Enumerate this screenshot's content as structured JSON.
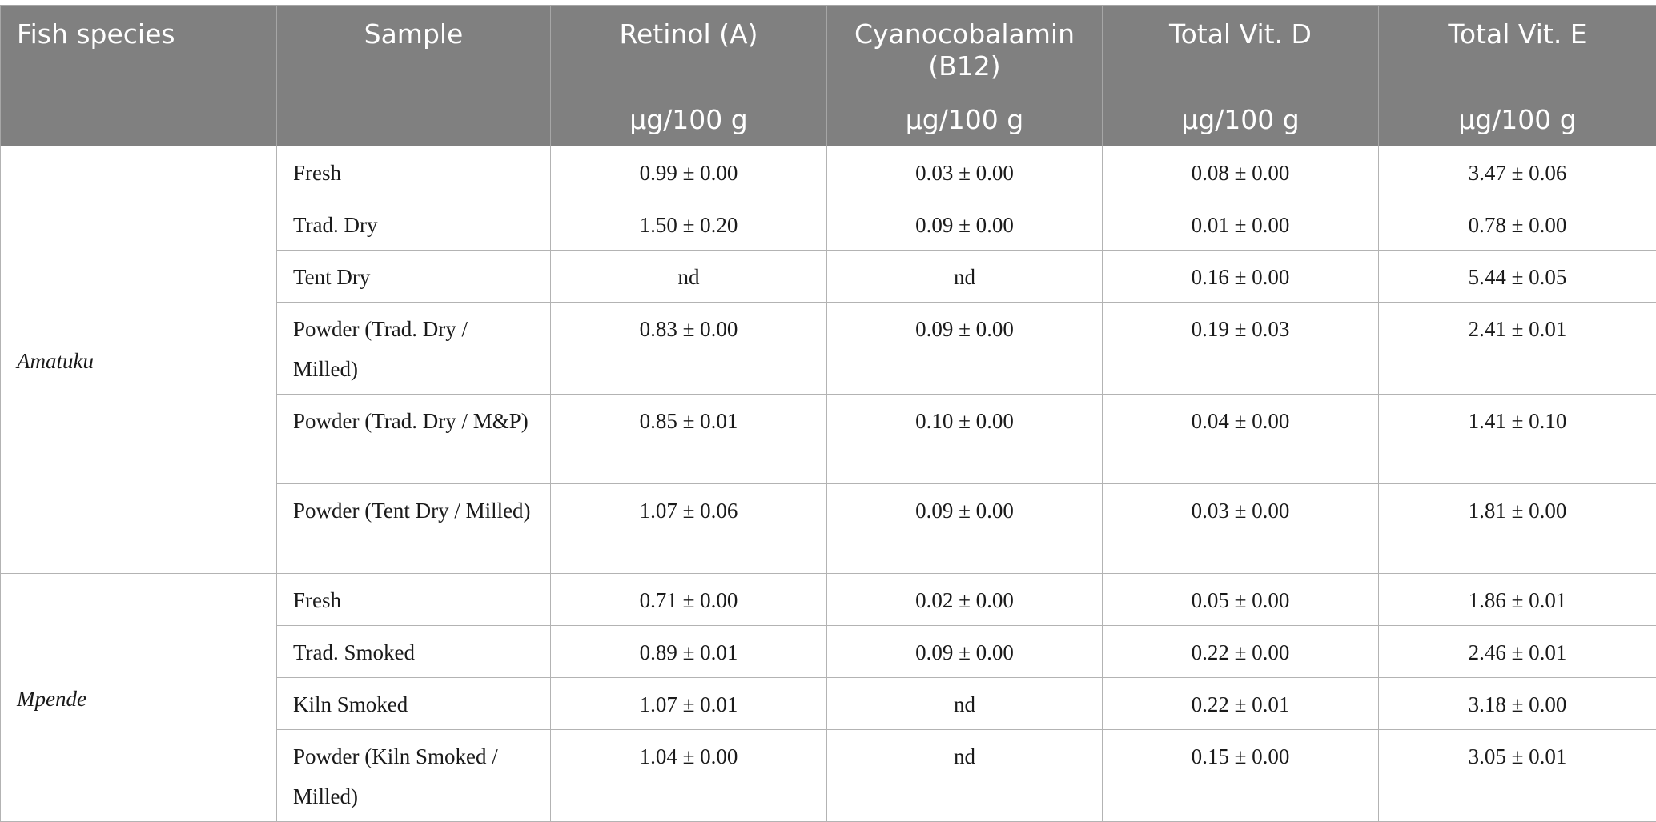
{
  "header": {
    "fish_species": "Fish species",
    "sample": "Sample",
    "retinol": "Retinol (A)",
    "cyanocobalamin": "Cyanocobalamin (B12)",
    "vitd": "Total Vit. D",
    "vite": "Total Vit. E",
    "unit": "μg/100 g"
  },
  "groups": [
    {
      "species": "Amatuku",
      "rows": [
        {
          "sample": "Fresh",
          "retinol": "0.99 ± 0.00",
          "b12": "0.03 ± 0.00",
          "vitd": "0.08 ± 0.00",
          "vite": "3.47 ± 0.06"
        },
        {
          "sample": "Trad. Dry",
          "retinol": "1.50 ± 0.20",
          "b12": "0.09 ± 0.00",
          "vitd": "0.01 ± 0.00",
          "vite": "0.78 ± 0.00"
        },
        {
          "sample": "Tent Dry",
          "retinol": "nd",
          "b12": "nd",
          "vitd": "0.16 ± 0.00",
          "vite": "5.44 ± 0.05"
        },
        {
          "sample": "Powder (Trad. Dry / Milled)",
          "retinol": "0.83 ± 0.00",
          "b12": "0.09 ± 0.00",
          "vitd": "0.19 ± 0.03",
          "vite": "2.41 ± 0.01"
        },
        {
          "sample": "Powder (Trad. Dry / M&P)",
          "retinol": "0.85 ± 0.01",
          "b12": "0.10 ± 0.00",
          "vitd": "0.04 ± 0.00",
          "vite": "1.41 ± 0.10"
        },
        {
          "sample": "Powder (Tent Dry / Milled)",
          "retinol": "1.07 ± 0.06",
          "b12": "0.09 ± 0.00",
          "vitd": "0.03 ± 0.00",
          "vite": "1.81 ± 0.00"
        }
      ]
    },
    {
      "species": "Mpende",
      "rows": [
        {
          "sample": "Fresh",
          "retinol": "0.71 ± 0.00",
          "b12": "0.02 ± 0.00",
          "vitd": "0.05 ± 0.00",
          "vite": "1.86 ± 0.01"
        },
        {
          "sample": "Trad. Smoked",
          "retinol": "0.89 ± 0.01",
          "b12": "0.09 ± 0.00",
          "vitd": "0.22 ± 0.00",
          "vite": "2.46 ± 0.01"
        },
        {
          "sample": "Kiln Smoked",
          "retinol": "1.07 ± 0.01",
          "b12": "nd",
          "vitd": "0.22 ± 0.01",
          "vite": "3.18 ± 0.00"
        },
        {
          "sample": "Powder (Kiln Smoked / Milled)",
          "retinol": "1.04 ± 0.00",
          "b12": "nd",
          "vitd": "0.15 ± 0.00",
          "vite": "3.05 ± 0.01"
        }
      ]
    }
  ]
}
